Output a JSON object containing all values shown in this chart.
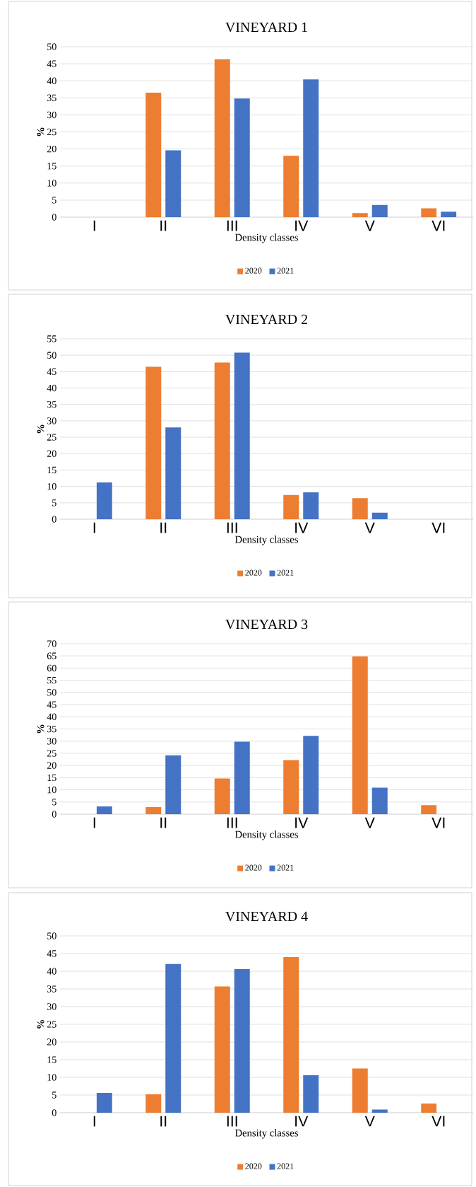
{
  "chart_data": [
    {
      "type": "bar",
      "title": "VINEYARD 1",
      "xlabel": "Density classes",
      "ylabel": "%",
      "categories": [
        "I",
        "II",
        "III",
        "IV",
        "V",
        "VI"
      ],
      "series": [
        {
          "name": "2020",
          "color": "#ed7d31",
          "values": [
            0,
            36.5,
            46.3,
            18,
            1.2,
            2.6
          ]
        },
        {
          "name": "2021",
          "color": "#4472c4",
          "values": [
            0,
            19.6,
            34.8,
            40.4,
            3.6,
            1.6
          ]
        }
      ],
      "ylim": [
        0,
        50
      ],
      "yticks": [
        0,
        5,
        10,
        15,
        20,
        25,
        30,
        35,
        40,
        45,
        50
      ],
      "grid": "y",
      "legend": "bottom"
    },
    {
      "type": "bar",
      "title": "VINEYARD 2",
      "xlabel": "Density classes",
      "ylabel": "%",
      "categories": [
        "I",
        "II",
        "III",
        "IV",
        "V",
        "VI"
      ],
      "series": [
        {
          "name": "2020",
          "color": "#ed7d31",
          "values": [
            0,
            46.5,
            47.8,
            7.4,
            6.4,
            0
          ]
        },
        {
          "name": "2021",
          "color": "#4472c4",
          "values": [
            11.2,
            28,
            50.8,
            8.2,
            2,
            0
          ]
        }
      ],
      "ylim": [
        0,
        55
      ],
      "yticks": [
        0,
        5,
        10,
        15,
        20,
        25,
        30,
        35,
        40,
        45,
        50,
        55
      ],
      "grid": "y",
      "legend": "bottom"
    },
    {
      "type": "bar",
      "title": "VINEYARD 3",
      "xlabel": "Density classes",
      "ylabel": "%",
      "categories": [
        "I",
        "II",
        "III",
        "IV",
        "V",
        "VI"
      ],
      "series": [
        {
          "name": "2020",
          "color": "#ed7d31",
          "values": [
            0,
            2.9,
            14.7,
            22.2,
            64.8,
            3.7
          ]
        },
        {
          "name": "2021",
          "color": "#4472c4",
          "values": [
            3.2,
            24.2,
            29.8,
            32.2,
            10.9,
            0
          ]
        }
      ],
      "ylim": [
        0,
        70
      ],
      "yticks": [
        0,
        5,
        10,
        15,
        20,
        25,
        30,
        35,
        40,
        45,
        50,
        55,
        60,
        65,
        70
      ],
      "grid": "y",
      "legend": "bottom"
    },
    {
      "type": "bar",
      "title": "VINEYARD 4",
      "xlabel": "Density classes",
      "ylabel": "%",
      "categories": [
        "I",
        "II",
        "III",
        "IV",
        "V",
        "VI"
      ],
      "series": [
        {
          "name": "2020",
          "color": "#ed7d31",
          "values": [
            0,
            5.2,
            35.7,
            44,
            12.5,
            2.6
          ]
        },
        {
          "name": "2021",
          "color": "#4472c4",
          "values": [
            5.6,
            42.1,
            40.6,
            10.6,
            0.9,
            0
          ]
        }
      ],
      "ylim": [
        0,
        50
      ],
      "yticks": [
        0,
        5,
        10,
        15,
        20,
        25,
        30,
        35,
        40,
        45,
        50
      ],
      "grid": "y",
      "legend": "bottom"
    }
  ]
}
